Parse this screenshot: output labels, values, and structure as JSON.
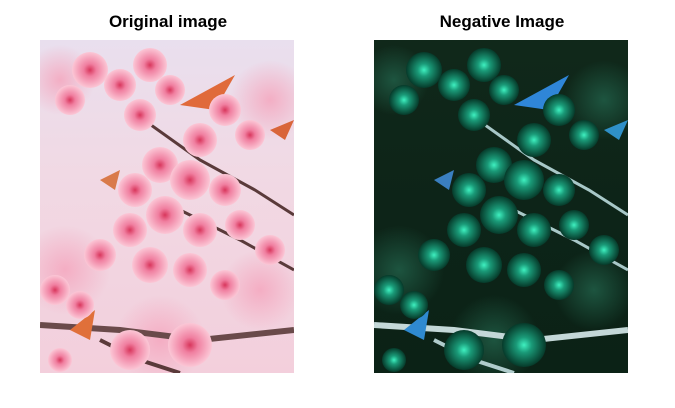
{
  "figure": {
    "panels": [
      {
        "title": "Original image"
      },
      {
        "title": "Negative Image"
      }
    ]
  }
}
